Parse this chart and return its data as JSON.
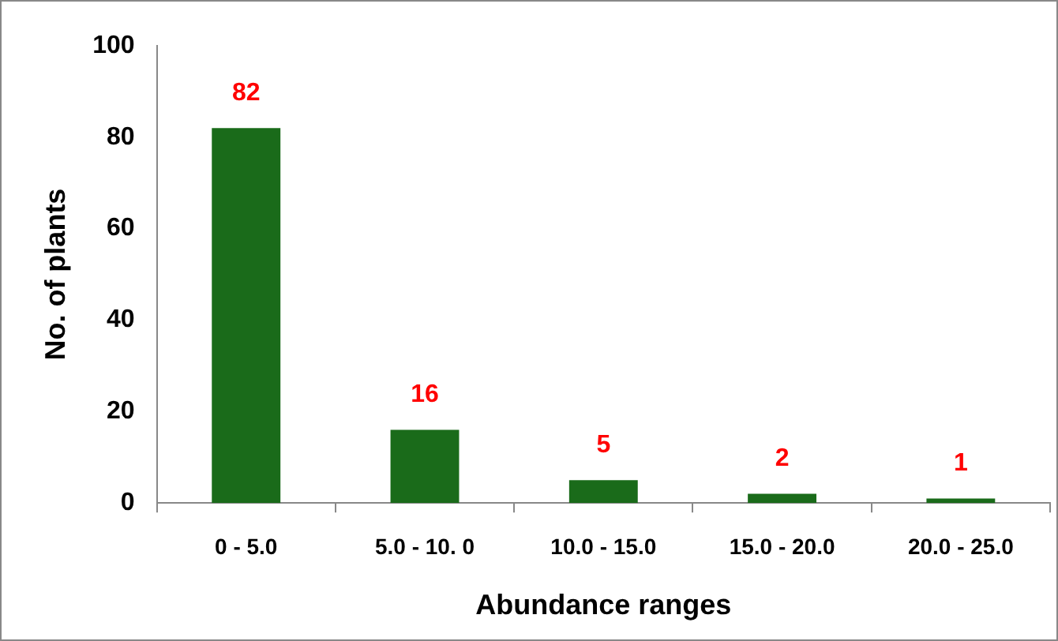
{
  "chart_data": {
    "type": "bar",
    "xlabel": "Abundance ranges",
    "ylabel": "No. of plants",
    "categories": [
      "0 - 5.0",
      "5.0 - 10. 0",
      "10.0 - 15.0",
      "15.0 - 20.0",
      "20.0 - 25.0"
    ],
    "values": [
      82,
      16,
      5,
      2,
      1
    ],
    "color": "#1a6b1a",
    "ylim": [
      0,
      100
    ],
    "yticks": [
      0,
      20,
      40,
      60,
      80,
      100
    ],
    "grid": false,
    "legend": false,
    "data_labels": true
  }
}
